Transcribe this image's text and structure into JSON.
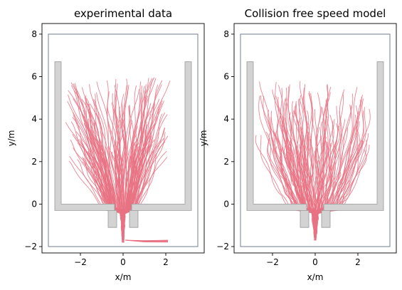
{
  "chart_data": [
    {
      "type": "line",
      "title": "experimental data",
      "xlabel": "x/m",
      "ylabel": "y/m",
      "xlim": [
        -3.8,
        3.8
      ],
      "ylim": [
        -2.3,
        8.5
      ],
      "xticks": [
        -2,
        0,
        2
      ],
      "yticks": [
        -2,
        0,
        2,
        4,
        6,
        8
      ],
      "xtick_labels": [
        "−2",
        "0",
        "2"
      ],
      "ytick_labels": [
        "−2",
        "0",
        "2",
        "4",
        "6",
        "8"
      ],
      "grid": false,
      "colors": {
        "trajectory": "#e87282",
        "boundary": "#7f8a9f",
        "obstacle_fill": "#d3d3d3",
        "obstacle_edge": "#9a9a9a"
      },
      "boundary": [
        [
          -3.5,
          -2
        ],
        [
          3.5,
          -2
        ],
        [
          3.5,
          8
        ],
        [
          -3.5,
          8
        ]
      ],
      "obstacles": [
        [
          [
            -3.2,
            6.7
          ],
          [
            -2.9,
            6.7
          ],
          [
            -2.9,
            0
          ],
          [
            -0.4,
            0
          ],
          [
            -0.4,
            -0.3
          ],
          [
            -3.2,
            -0.3
          ]
        ],
        [
          [
            3.2,
            6.7
          ],
          [
            2.9,
            6.7
          ],
          [
            2.9,
            0
          ],
          [
            0.4,
            0
          ],
          [
            0.4,
            -0.3
          ],
          [
            3.2,
            -0.3
          ]
        ],
        [
          [
            -0.7,
            -0.3
          ],
          [
            -0.3,
            -0.3
          ],
          [
            -0.3,
            -1.1
          ],
          [
            -0.7,
            -1.1
          ]
        ],
        [
          [
            0.3,
            -0.3
          ],
          [
            0.7,
            -0.3
          ],
          [
            0.7,
            -1.1
          ],
          [
            0.3,
            -1.1
          ]
        ]
      ],
      "trajectory_seed": 7,
      "trajectory_count": 170,
      "start_x_range": [
        -2.6,
        2.1
      ],
      "start_y_range": [
        2.0,
        6.0
      ],
      "exit_y": -1.8
    },
    {
      "type": "line",
      "title": "Collision free speed model",
      "xlabel": "x/m",
      "ylabel": "y/m",
      "xlim": [
        -3.8,
        3.8
      ],
      "ylim": [
        -2.3,
        8.5
      ],
      "xticks": [
        -2,
        0,
        2
      ],
      "yticks": [
        -2,
        0,
        2,
        4,
        6,
        8
      ],
      "xtick_labels": [
        "−2",
        "0",
        "2"
      ],
      "ytick_labels": [
        "−2",
        "0",
        "2",
        "4",
        "6",
        "8"
      ],
      "grid": false,
      "colors": {
        "trajectory": "#e87282",
        "boundary": "#7f8a9f",
        "obstacle_fill": "#d3d3d3",
        "obstacle_edge": "#9a9a9a"
      },
      "boundary": [
        [
          -3.5,
          -2
        ],
        [
          3.5,
          -2
        ],
        [
          3.5,
          8
        ],
        [
          -3.5,
          8
        ]
      ],
      "obstacles": [
        [
          [
            -3.2,
            6.7
          ],
          [
            -2.9,
            6.7
          ],
          [
            -2.9,
            0
          ],
          [
            -0.4,
            0
          ],
          [
            -0.4,
            -0.3
          ],
          [
            -3.2,
            -0.3
          ]
        ],
        [
          [
            3.2,
            6.7
          ],
          [
            2.9,
            6.7
          ],
          [
            2.9,
            0
          ],
          [
            0.4,
            0
          ],
          [
            0.4,
            -0.3
          ],
          [
            3.2,
            -0.3
          ]
        ],
        [
          [
            -0.7,
            -0.3
          ],
          [
            -0.3,
            -0.3
          ],
          [
            -0.3,
            -1.1
          ],
          [
            -0.7,
            -1.1
          ]
        ],
        [
          [
            0.3,
            -0.3
          ],
          [
            0.7,
            -0.3
          ],
          [
            0.7,
            -1.1
          ],
          [
            0.3,
            -1.1
          ]
        ]
      ],
      "trajectory_seed": 13,
      "trajectory_count": 140,
      "start_x_range": [
        -2.7,
        2.5
      ],
      "start_y_range": [
        2.5,
        5.8
      ],
      "exit_y": -1.7
    }
  ]
}
